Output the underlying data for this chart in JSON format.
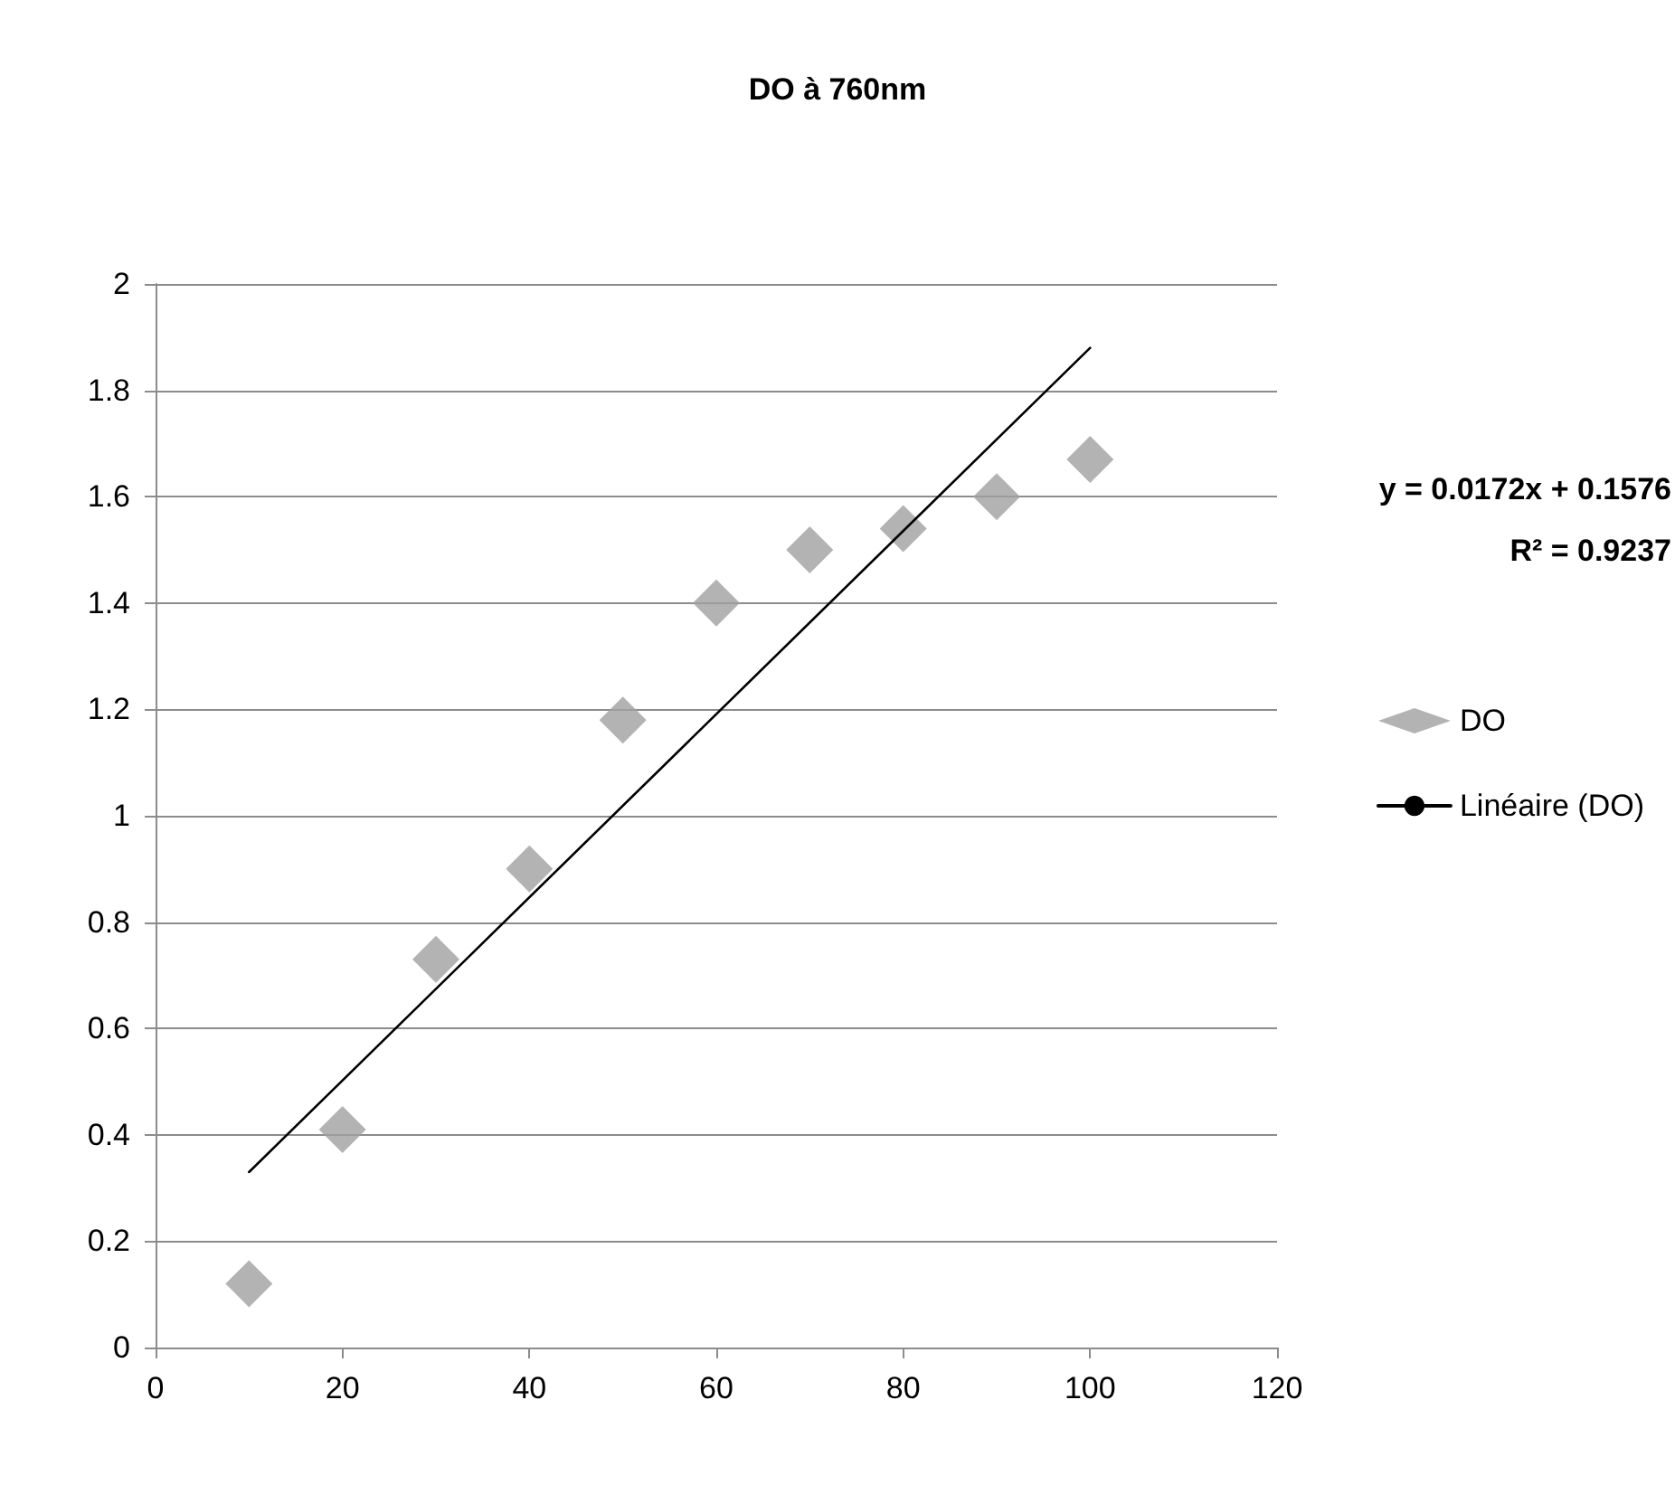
{
  "chart_data": {
    "type": "scatter",
    "title": "DO à 760nm",
    "marker": "diamond",
    "grid": "y",
    "legend": "right",
    "x": [
      10,
      20,
      30,
      40,
      50,
      60,
      70,
      80,
      90,
      100
    ],
    "series": [
      {
        "name": "DO",
        "color": "#a0a0a0",
        "values": [
          0.12,
          0.41,
          0.73,
          0.9,
          1.18,
          1.4,
          1.5,
          1.54,
          1.6,
          1.67
        ]
      },
      {
        "name": "Linéaire (DO)",
        "type": "line",
        "marker": "none",
        "color": "#000000",
        "x": [
          10,
          100
        ],
        "values": [
          0.33,
          1.88
        ]
      }
    ],
    "annotations": [
      "y = 0.0172x + 0.1576",
      "R² = 0.9237"
    ],
    "xlim": [
      0,
      120
    ],
    "xticks": [
      0,
      20,
      40,
      60,
      80,
      100,
      120
    ],
    "ylim": [
      0,
      2
    ],
    "yticks": [
      0,
      0.2,
      0.4,
      0.6,
      0.8,
      1,
      1.2,
      1.4,
      1.6,
      1.8,
      2
    ]
  }
}
